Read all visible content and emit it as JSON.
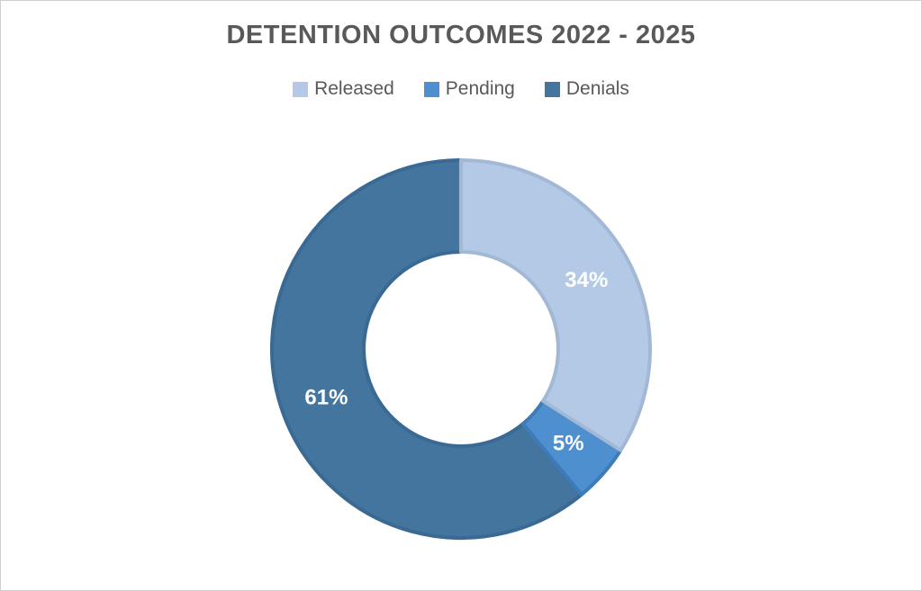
{
  "page": {
    "background": "#FFFFFF",
    "border_color": "#CFCFCF"
  },
  "chart_data": {
    "type": "pie",
    "subtype": "donut",
    "title": "DETENTION OUTCOMES 2022 - 2025",
    "categories": [
      "Released",
      "Pending",
      "Denials"
    ],
    "values": [
      34,
      5,
      61
    ],
    "data_labels": [
      "34%",
      "5%",
      "61%"
    ],
    "unit": "%",
    "colors": [
      "#B3C9E5",
      "#4E8FD0",
      "#44759F"
    ],
    "stroke_colors": [
      "#A2B8D4",
      "#3E7CB9",
      "#3A6A94"
    ],
    "title_color": "#595959",
    "legend_text_color": "#595959",
    "data_label_color": "#FFFFFF",
    "legend_position": "top",
    "start_angle_deg": 0,
    "direction": "clockwise",
    "donut_hole_ratio": 0.514,
    "grid": false
  }
}
